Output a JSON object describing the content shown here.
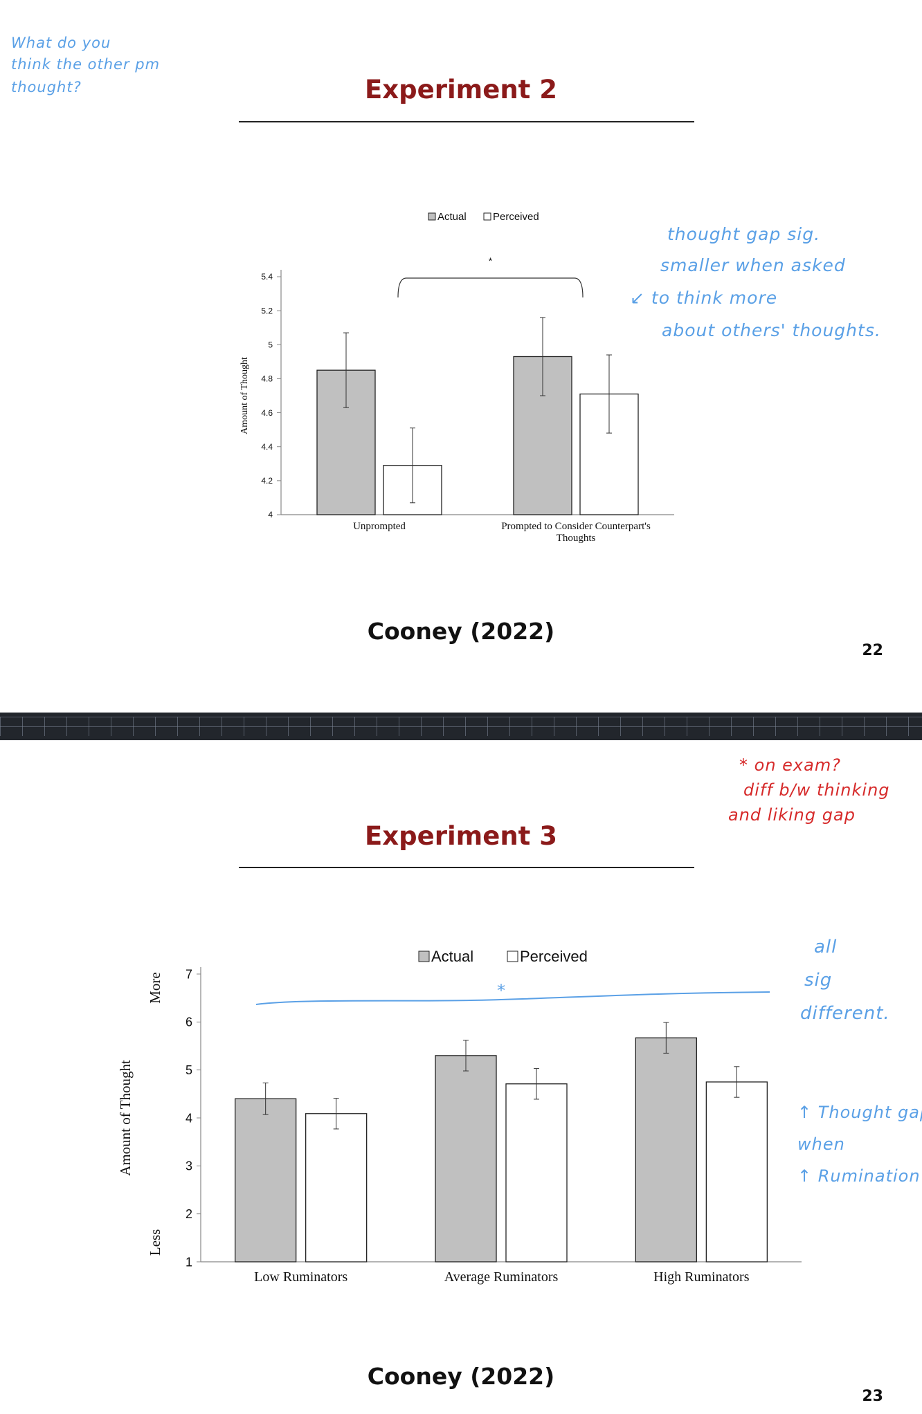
{
  "slides": [
    {
      "title": "Experiment 2",
      "citation": "Cooney (2022)",
      "page_number": "22",
      "annotations": [
        {
          "lines": [
            "What do you",
            "think the other pm",
            "thought?"
          ]
        },
        {
          "lines": [
            "thought gap sig.",
            "smaller when asked",
            "↙ to think more",
            "about others' thoughts."
          ]
        }
      ]
    },
    {
      "title": "Experiment 3",
      "citation": "Cooney (2022)",
      "page_number": "23",
      "annotations": [
        {
          "lines": [
            "* on exam?",
            "diff b/w thinking",
            "and liking gap"
          ]
        },
        {
          "lines": [
            "all",
            "sig",
            "different."
          ]
        },
        {
          "lines": [
            "↑ Thought gap",
            "when",
            "↑ Rumination"
          ]
        }
      ],
      "handwritten_star": "*"
    }
  ],
  "colors": {
    "title": "#8b1a1a",
    "actual_fill": "#c0c0c0",
    "perceived_fill": "#ffffff",
    "annotation_blue": "#5aa0e6",
    "annotation_red": "#d62a2a"
  },
  "chart_data": [
    {
      "type": "bar",
      "categories": [
        "Unprompted",
        "Prompted to Consider Counterpart's Thoughts"
      ],
      "series": [
        {
          "name": "Actual",
          "values": [
            4.85,
            4.93
          ],
          "error": [
            [
              4.63,
              5.07
            ],
            [
              4.7,
              5.16
            ]
          ]
        },
        {
          "name": "Perceived",
          "values": [
            4.29,
            4.71
          ],
          "error": [
            [
              4.07,
              4.51
            ],
            [
              4.48,
              4.94
            ]
          ]
        }
      ],
      "xlabel": "",
      "ylabel": "Amount of Thought",
      "ylim": [
        4,
        5.4
      ],
      "yticks": [
        "4",
        "4.2",
        "4.4",
        "4.6",
        "4.8",
        "5",
        "5.2",
        "5.4"
      ],
      "legend": "top",
      "significance": "*",
      "grid": false
    },
    {
      "type": "bar",
      "categories": [
        "Low Ruminators",
        "Average Ruminators",
        "High Ruminators"
      ],
      "series": [
        {
          "name": "Actual",
          "values": [
            4.4,
            5.3,
            5.67
          ],
          "error": [
            [
              4.07,
              4.73
            ],
            [
              4.98,
              5.62
            ],
            [
              5.35,
              5.99
            ]
          ]
        },
        {
          "name": "Perceived",
          "values": [
            4.09,
            4.71,
            4.75
          ],
          "error": [
            [
              3.77,
              4.41
            ],
            [
              4.39,
              5.03
            ],
            [
              4.43,
              5.07
            ]
          ]
        }
      ],
      "xlabel": "",
      "ylabel": "Amount of Thought",
      "ylabel_top": "More",
      "ylabel_bottom": "Less",
      "ylim": [
        1,
        7
      ],
      "yticks": [
        "1",
        "2",
        "3",
        "4",
        "5",
        "6",
        "7"
      ],
      "legend": "top",
      "grid": false
    }
  ]
}
